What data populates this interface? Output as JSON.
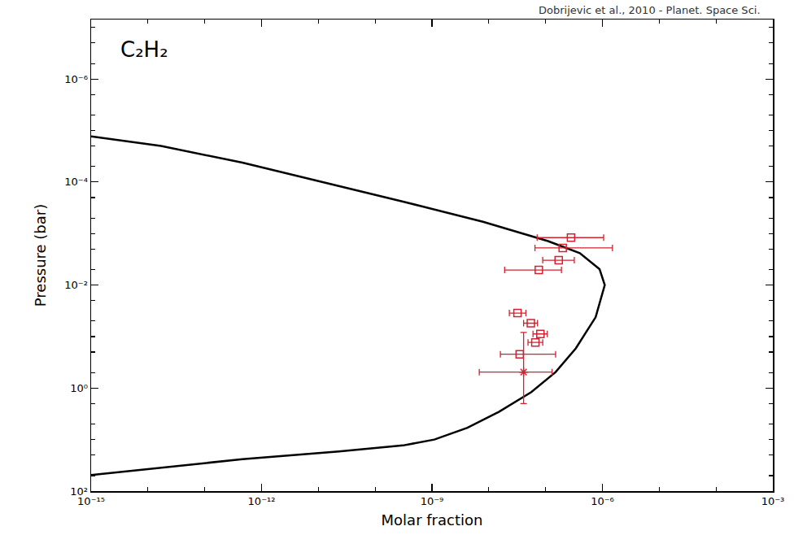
{
  "chart_data": {
    "type": "scatter",
    "log": true,
    "grid": false,
    "tick_labels": true,
    "annotations": [
      {
        "text": "C₂H₂"
      },
      {
        "text": "Dobrijevic et al., 2010 - Planet. Space Sci."
      }
    ],
    "x_label": "Molar fraction",
    "y_label": "Pressure (bar)",
    "xlim": [
      1e-15,
      0.001
    ],
    "ylim": [
      100,
      7e-08
    ],
    "xticks": [
      {
        "value": 1e-15,
        "label": "10⁻¹⁵"
      },
      {
        "value": 1e-12,
        "label": "10⁻¹²"
      },
      {
        "value": 1e-09,
        "label": "10⁻⁹"
      },
      {
        "value": 1e-06,
        "label": "10⁻⁶"
      },
      {
        "value": 0.001,
        "label": "10⁻³"
      }
    ],
    "yticks": [
      {
        "value": 1e-06,
        "label": "10⁻⁶"
      },
      {
        "value": 0.0001,
        "label": "10⁻⁴"
      },
      {
        "value": 0.01,
        "label": "10⁻²"
      },
      {
        "value": 1,
        "label": "10⁰"
      },
      {
        "value": 100,
        "label": "10²"
      }
    ],
    "series": [
      {
        "type": "line",
        "color": "#000000",
        "line_style": "solid",
        "x": [
          1e-15,
          1.7e-14,
          4.6e-13,
          1.2e-11,
          3.1e-10,
          7.9e-09,
          1.1e-07,
          4e-07,
          8.9e-07,
          1.1e-06,
          7.6e-07,
          3.4e-07,
          1.5e-07,
          5.6e-08,
          1.5e-08,
          4.2e-09,
          1.1e-09,
          3.1e-10,
          2.3e-11,
          4.6e-13,
          1.7e-14,
          1e-15
        ],
        "y": [
          1.3e-05,
          2e-05,
          4.2e-05,
          0.0001,
          0.00024,
          0.00059,
          0.0014,
          0.0024,
          0.0049,
          0.01,
          0.042,
          0.17,
          0.49,
          1.2,
          2.9,
          5.9,
          10,
          13,
          17,
          24,
          35,
          49
        ]
      },
      {
        "type": "scatter",
        "color": "#d42030",
        "marker": "square-open",
        "x": [
          2.8e-07,
          2e-07,
          1.7e-07,
          7.6e-08,
          3.2e-08,
          5.5e-08,
          8.1e-08,
          6.6e-08,
          3.5e-08
        ],
        "y": [
          0.0012,
          0.0019,
          0.0033,
          0.0051,
          0.035,
          0.055,
          0.089,
          0.13,
          0.22
        ],
        "x_low": [
          7.1e-08,
          6.5e-08,
          8.9e-08,
          1.9e-08,
          2.3e-08,
          4.1e-08,
          6e-08,
          4.9e-08,
          1.6e-08
        ],
        "x_high": [
          1.05e-06,
          1.5e-06,
          3.2e-07,
          1.9e-07,
          4.5e-08,
          7.2e-08,
          1.07e-07,
          8.9e-08,
          1.5e-07
        ]
      },
      {
        "type": "scatter",
        "color": "#d42030",
        "marker": "asterisk-open",
        "x": [
          4.1e-08
        ],
        "y": [
          0.49
        ],
        "x_low": [
          6.8e-09
        ],
        "x_high": [
          1.3e-07
        ],
        "y_low": [
          0.083
        ],
        "y_high": [
          2.0
        ]
      }
    ]
  }
}
